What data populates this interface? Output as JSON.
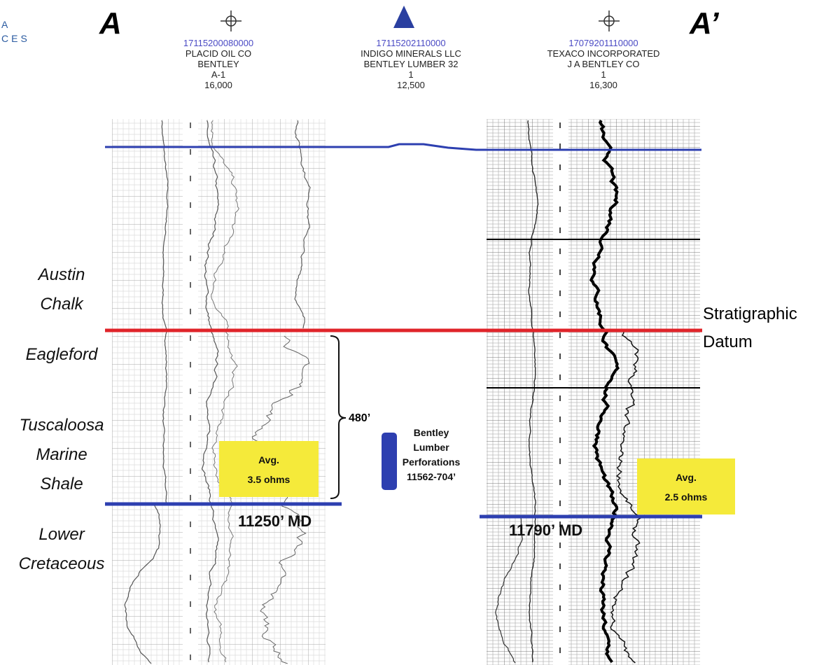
{
  "logo": [
    "A",
    "CES"
  ],
  "section": {
    "start": "A",
    "end": "A’"
  },
  "wells": [
    {
      "api": "17115200080000",
      "operator": "PLACID OIL CO",
      "lease": "BENTLEY",
      "number": "A-1",
      "depth": "16,000"
    },
    {
      "api": "17115202110000",
      "operator": "INDIGO MINERALS LLC",
      "lease": "BENTLEY LUMBER 32",
      "number": "1",
      "depth": "12,500"
    },
    {
      "api": "17079201110000",
      "operator": "TEXACO INCORPORATED",
      "lease": "J A BENTLEY CO",
      "number": "1",
      "depth": "16,300"
    }
  ],
  "formations": [
    {
      "lines": [
        "Austin",
        "Chalk"
      ]
    },
    {
      "lines": [
        "Eagleford"
      ]
    },
    {
      "lines": [
        "Tuscaloosa",
        "Marine",
        "Shale"
      ]
    },
    {
      "lines": [
        "Lower",
        "Cretaceous"
      ]
    }
  ],
  "datum": [
    "Stratigraphic",
    "Datum"
  ],
  "thickness": "480’",
  "perforations": [
    "Bentley",
    "Lumber",
    "Perforations",
    "11562-704’"
  ],
  "resistivity": [
    {
      "lines": [
        "Avg.",
        "3.5 ohms"
      ]
    },
    {
      "lines": [
        "Avg.",
        "2.5 ohms"
      ]
    }
  ],
  "depths": [
    "11250’ MD",
    "11790’ MD"
  ]
}
